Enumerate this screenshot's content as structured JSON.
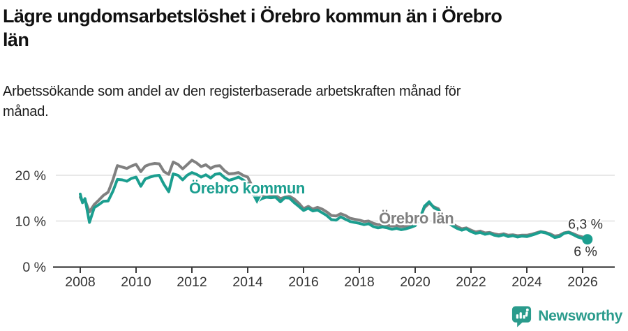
{
  "header": {
    "title_lines": [
      "Lägre ungdomsarbetslöshet i Örebro kommun än i Örebro",
      "län"
    ],
    "subtitle_lines": [
      "Arbetssökande som andel av den registerbaserade arbetskraften månad för",
      "månad."
    ]
  },
  "chart_data": {
    "type": "line",
    "title": "Lägre ungdomsarbetslöshet i Örebro kommun än i Örebro län",
    "subtitle": "Arbetssökande som andel av den registerbaserade arbetskraften månad för månad.",
    "xlabel": "",
    "ylabel": "",
    "unit": "%",
    "x_axis": {
      "ticks": [
        2008,
        2010,
        2012,
        2014,
        2016,
        2018,
        2020,
        2022,
        2024,
        2026
      ],
      "range": [
        2007.0,
        2027.1
      ]
    },
    "y_axis": {
      "ticks": [
        0,
        10,
        20
      ],
      "tick_labels": [
        "0 %",
        "10 %",
        "20 %"
      ],
      "gridlines": [
        10,
        20
      ],
      "range": [
        0,
        27.5
      ]
    },
    "series": [
      {
        "name": "Örebro län",
        "color": "#808080",
        "end_value": 6.3,
        "end_value_label": "6,3 %",
        "points": [
          [
            2008.0,
            15.2
          ],
          [
            2008.08,
            14.2
          ],
          [
            2008.17,
            14.6
          ],
          [
            2008.33,
            12.0
          ],
          [
            2008.5,
            13.6
          ],
          [
            2008.67,
            14.6
          ],
          [
            2008.83,
            15.6
          ],
          [
            2009.0,
            16.3
          ],
          [
            2009.17,
            19.0
          ],
          [
            2009.33,
            22.1
          ],
          [
            2009.5,
            21.8
          ],
          [
            2009.67,
            21.5
          ],
          [
            2009.83,
            22.0
          ],
          [
            2010.0,
            22.4
          ],
          [
            2010.17,
            20.8
          ],
          [
            2010.33,
            22.0
          ],
          [
            2010.5,
            22.4
          ],
          [
            2010.67,
            22.6
          ],
          [
            2010.83,
            22.5
          ],
          [
            2011.0,
            20.8
          ],
          [
            2011.17,
            20.2
          ],
          [
            2011.33,
            22.9
          ],
          [
            2011.5,
            22.4
          ],
          [
            2011.67,
            21.4
          ],
          [
            2011.83,
            22.3
          ],
          [
            2012.0,
            23.3
          ],
          [
            2012.17,
            22.7
          ],
          [
            2012.33,
            21.9
          ],
          [
            2012.5,
            22.3
          ],
          [
            2012.67,
            21.5
          ],
          [
            2012.83,
            22.0
          ],
          [
            2013.0,
            22.1
          ],
          [
            2013.17,
            21.0
          ],
          [
            2013.33,
            20.3
          ],
          [
            2013.5,
            20.4
          ],
          [
            2013.67,
            20.6
          ],
          [
            2013.83,
            20.0
          ],
          [
            2014.0,
            19.6
          ],
          [
            2014.17,
            17.5
          ],
          [
            2014.33,
            15.2
          ],
          [
            2014.5,
            15.4
          ],
          [
            2014.67,
            15.2
          ],
          [
            2014.83,
            15.4
          ],
          [
            2015.0,
            15.6
          ],
          [
            2015.17,
            14.9
          ],
          [
            2015.33,
            15.2
          ],
          [
            2015.5,
            15.4
          ],
          [
            2015.67,
            14.8
          ],
          [
            2015.83,
            13.9
          ],
          [
            2016.0,
            12.7
          ],
          [
            2016.17,
            13.2
          ],
          [
            2016.33,
            12.6
          ],
          [
            2016.5,
            13.0
          ],
          [
            2016.67,
            12.6
          ],
          [
            2016.83,
            12.0
          ],
          [
            2017.0,
            11.2
          ],
          [
            2017.17,
            11.1
          ],
          [
            2017.33,
            11.6
          ],
          [
            2017.5,
            11.2
          ],
          [
            2017.67,
            10.6
          ],
          [
            2017.83,
            10.4
          ],
          [
            2018.0,
            10.2
          ],
          [
            2018.17,
            9.9
          ],
          [
            2018.33,
            10.0
          ],
          [
            2018.5,
            9.5
          ],
          [
            2018.67,
            9.2
          ],
          [
            2018.83,
            9.3
          ],
          [
            2019.0,
            9.1
          ],
          [
            2019.17,
            8.9
          ],
          [
            2019.33,
            9.0
          ],
          [
            2019.5,
            8.8
          ],
          [
            2019.67,
            8.9
          ],
          [
            2019.83,
            9.2
          ],
          [
            2020.0,
            9.6
          ],
          [
            2020.17,
            10.8
          ],
          [
            2020.33,
            12.9
          ],
          [
            2020.5,
            13.9
          ],
          [
            2020.67,
            13.1
          ],
          [
            2020.83,
            12.7
          ],
          [
            2021.0,
            10.8
          ],
          [
            2021.17,
            10.0
          ],
          [
            2021.33,
            9.4
          ],
          [
            2021.5,
            8.8
          ],
          [
            2021.67,
            8.3
          ],
          [
            2021.83,
            8.5
          ],
          [
            2022.0,
            8.0
          ],
          [
            2022.17,
            7.6
          ],
          [
            2022.33,
            7.8
          ],
          [
            2022.5,
            7.4
          ],
          [
            2022.67,
            7.5
          ],
          [
            2022.83,
            7.2
          ],
          [
            2023.0,
            7.0
          ],
          [
            2023.17,
            7.2
          ],
          [
            2023.33,
            6.9
          ],
          [
            2023.5,
            7.0
          ],
          [
            2023.67,
            6.8
          ],
          [
            2023.83,
            6.9
          ],
          [
            2024.0,
            6.9
          ],
          [
            2024.17,
            7.1
          ],
          [
            2024.33,
            7.4
          ],
          [
            2024.5,
            7.7
          ],
          [
            2024.67,
            7.5
          ],
          [
            2024.83,
            7.2
          ],
          [
            2025.0,
            6.7
          ],
          [
            2025.17,
            6.9
          ],
          [
            2025.33,
            7.4
          ],
          [
            2025.5,
            7.6
          ],
          [
            2025.67,
            7.2
          ],
          [
            2025.83,
            6.8
          ],
          [
            2026.0,
            6.5
          ],
          [
            2026.1,
            6.3
          ]
        ]
      },
      {
        "name": "Örebro kommun",
        "color": "#1b9e8f",
        "end_value": 6,
        "end_value_label": "6 %",
        "end_dot": true,
        "points": [
          [
            2008.0,
            15.9
          ],
          [
            2008.08,
            14.0
          ],
          [
            2008.17,
            14.9
          ],
          [
            2008.33,
            9.7
          ],
          [
            2008.5,
            12.9
          ],
          [
            2008.67,
            13.6
          ],
          [
            2008.83,
            14.3
          ],
          [
            2009.0,
            14.4
          ],
          [
            2009.17,
            16.5
          ],
          [
            2009.33,
            19.1
          ],
          [
            2009.5,
            19.0
          ],
          [
            2009.67,
            18.7
          ],
          [
            2009.83,
            19.3
          ],
          [
            2010.0,
            19.6
          ],
          [
            2010.17,
            17.6
          ],
          [
            2010.33,
            19.2
          ],
          [
            2010.5,
            19.6
          ],
          [
            2010.67,
            19.9
          ],
          [
            2010.83,
            20.0
          ],
          [
            2011.0,
            18.0
          ],
          [
            2011.17,
            16.4
          ],
          [
            2011.33,
            20.3
          ],
          [
            2011.5,
            20.0
          ],
          [
            2011.67,
            19.0
          ],
          [
            2011.83,
            20.0
          ],
          [
            2012.0,
            20.6
          ],
          [
            2012.17,
            20.2
          ],
          [
            2012.33,
            19.6
          ],
          [
            2012.5,
            20.1
          ],
          [
            2012.67,
            19.4
          ],
          [
            2012.83,
            20.2
          ],
          [
            2013.0,
            20.4
          ],
          [
            2013.17,
            19.5
          ],
          [
            2013.33,
            18.9
          ],
          [
            2013.5,
            19.2
          ],
          [
            2013.67,
            19.6
          ],
          [
            2013.83,
            19.0
          ],
          [
            2014.0,
            18.2
          ],
          [
            2014.17,
            16.0
          ],
          [
            2014.33,
            14.2
          ],
          [
            2014.5,
            14.9
          ],
          [
            2014.67,
            15.2
          ],
          [
            2014.83,
            15.1
          ],
          [
            2015.0,
            15.2
          ],
          [
            2015.17,
            14.2
          ],
          [
            2015.33,
            15.1
          ],
          [
            2015.5,
            15.0
          ],
          [
            2015.67,
            14.0
          ],
          [
            2015.83,
            13.2
          ],
          [
            2016.0,
            12.3
          ],
          [
            2016.17,
            12.8
          ],
          [
            2016.33,
            12.2
          ],
          [
            2016.5,
            12.4
          ],
          [
            2016.67,
            11.8
          ],
          [
            2016.83,
            11.2
          ],
          [
            2017.0,
            10.3
          ],
          [
            2017.17,
            10.2
          ],
          [
            2017.33,
            10.9
          ],
          [
            2017.5,
            10.4
          ],
          [
            2017.67,
            9.9
          ],
          [
            2017.83,
            9.7
          ],
          [
            2018.0,
            9.5
          ],
          [
            2018.17,
            9.2
          ],
          [
            2018.33,
            9.4
          ],
          [
            2018.5,
            8.8
          ],
          [
            2018.67,
            8.5
          ],
          [
            2018.83,
            8.7
          ],
          [
            2019.0,
            8.5
          ],
          [
            2019.17,
            8.2
          ],
          [
            2019.33,
            8.4
          ],
          [
            2019.5,
            8.1
          ],
          [
            2019.67,
            8.3
          ],
          [
            2019.83,
            8.6
          ],
          [
            2020.0,
            9.0
          ],
          [
            2020.17,
            10.5
          ],
          [
            2020.33,
            13.2
          ],
          [
            2020.5,
            14.2
          ],
          [
            2020.67,
            12.9
          ],
          [
            2020.83,
            12.4
          ],
          [
            2021.0,
            10.4
          ],
          [
            2021.17,
            9.6
          ],
          [
            2021.33,
            9.0
          ],
          [
            2021.5,
            8.4
          ],
          [
            2021.67,
            8.0
          ],
          [
            2021.83,
            8.3
          ],
          [
            2022.0,
            7.7
          ],
          [
            2022.17,
            7.3
          ],
          [
            2022.33,
            7.5
          ],
          [
            2022.5,
            7.1
          ],
          [
            2022.67,
            7.3
          ],
          [
            2022.83,
            6.9
          ],
          [
            2023.0,
            6.7
          ],
          [
            2023.17,
            7.0
          ],
          [
            2023.33,
            6.6
          ],
          [
            2023.5,
            6.8
          ],
          [
            2023.67,
            6.5
          ],
          [
            2023.83,
            6.7
          ],
          [
            2024.0,
            6.6
          ],
          [
            2024.17,
            6.9
          ],
          [
            2024.33,
            7.2
          ],
          [
            2024.5,
            7.6
          ],
          [
            2024.67,
            7.4
          ],
          [
            2024.83,
            7.0
          ],
          [
            2025.0,
            6.4
          ],
          [
            2025.17,
            6.6
          ],
          [
            2025.33,
            7.3
          ],
          [
            2025.5,
            7.5
          ],
          [
            2025.67,
            7.0
          ],
          [
            2025.83,
            6.5
          ],
          [
            2026.0,
            6.2
          ],
          [
            2026.17,
            6.0
          ]
        ]
      }
    ],
    "annotations": [
      {
        "text": "Örebro kommun",
        "color": "#1b9e8f",
        "x": 2011.9,
        "y": 16.0,
        "marker": {
          "x": 2014.33,
          "y": 13.5
        }
      },
      {
        "text": "Örebro län",
        "color": "#808080",
        "x": 2018.7,
        "y": 9.5
      }
    ],
    "legend": "inline-labels",
    "grid": "horizontal-only"
  },
  "footer": {
    "brand": "Newsworthy",
    "brand_color": "#2a9b8c",
    "icon": "bar-chart-speech-bubble-icon"
  }
}
